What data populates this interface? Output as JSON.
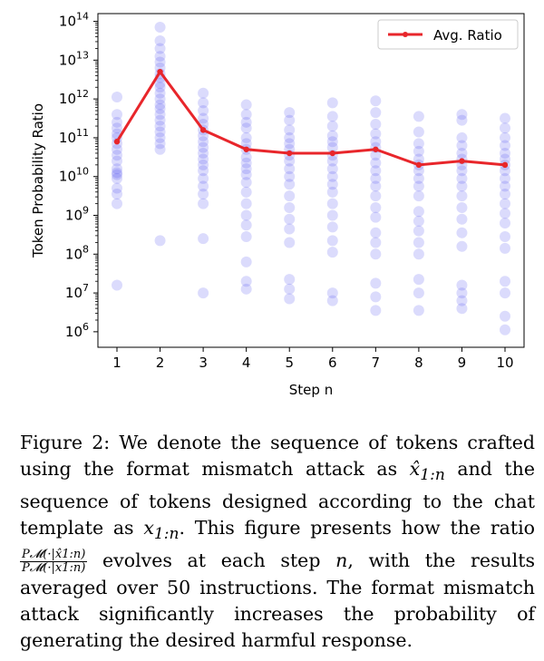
{
  "chart_data": {
    "type": "scatter",
    "ylabel": "Token Probability Ratio",
    "xlabel": "Step n",
    "yscale": "log",
    "ylim_exponent": [
      5.6,
      14.2
    ],
    "yticks": [
      {
        "exp": 6,
        "label": "10^6"
      },
      {
        "exp": 7,
        "label": "10^7"
      },
      {
        "exp": 8,
        "label": "10^8"
      },
      {
        "exp": 9,
        "label": "10^9"
      },
      {
        "exp": 10,
        "label": "10^10"
      },
      {
        "exp": 11,
        "label": "10^11"
      },
      {
        "exp": 12,
        "label": "10^12"
      },
      {
        "exp": 13,
        "label": "10^13"
      },
      {
        "exp": 14,
        "label": "10^14"
      }
    ],
    "categories": [
      "1",
      "2",
      "3",
      "4",
      "5",
      "6",
      "7",
      "8",
      "9",
      "10"
    ],
    "legend": {
      "label": "Avg. Ratio",
      "position": "top-right"
    },
    "colors": {
      "avg_line": "#e8262b",
      "points": "#4a4af0"
    },
    "avg_ratio_exponent": [
      10.9,
      12.7,
      11.2,
      10.7,
      10.6,
      10.6,
      10.7,
      10.3,
      10.4,
      10.3
    ],
    "points_exponent": [
      [
        12.05,
        11.6,
        11.4,
        11.25,
        11.1,
        11.0,
        10.85,
        10.7,
        10.55,
        10.4,
        10.2,
        10.1,
        10.05,
        9.95,
        9.7,
        9.55,
        9.3,
        7.2
      ],
      [
        13.85,
        13.5,
        13.3,
        13.1,
        12.95,
        12.8,
        12.65,
        12.55,
        12.4,
        12.3,
        12.15,
        12.0,
        11.85,
        11.75,
        11.6,
        11.45,
        11.3,
        11.15,
        11.0,
        10.85,
        10.7,
        8.35
      ],
      [
        12.15,
        11.9,
        11.7,
        11.5,
        11.35,
        11.2,
        11.05,
        10.9,
        10.75,
        10.6,
        10.45,
        10.3,
        10.15,
        9.95,
        9.75,
        9.55,
        9.3,
        8.4,
        7.0
      ],
      [
        11.85,
        11.6,
        11.4,
        11.25,
        11.0,
        10.85,
        10.7,
        10.5,
        10.35,
        10.2,
        10.05,
        9.85,
        9.6,
        9.3,
        9.0,
        8.75,
        8.45,
        7.8,
        7.3,
        7.1
      ],
      [
        11.65,
        11.45,
        11.2,
        11.0,
        10.85,
        10.7,
        10.55,
        10.4,
        10.2,
        10.0,
        9.8,
        9.5,
        9.2,
        8.9,
        8.65,
        8.3,
        7.35,
        7.1,
        6.85
      ],
      [
        11.9,
        11.55,
        11.3,
        11.05,
        10.9,
        10.75,
        10.55,
        10.4,
        10.2,
        10.0,
        9.8,
        9.6,
        9.3,
        9.0,
        8.7,
        8.35,
        8.05,
        7.0,
        6.8
      ],
      [
        11.95,
        11.65,
        11.35,
        11.1,
        10.9,
        10.75,
        10.55,
        10.35,
        10.15,
        9.95,
        9.75,
        9.5,
        9.2,
        8.95,
        8.55,
        8.3,
        8.0,
        7.25,
        6.9,
        6.55
      ],
      [
        11.55,
        11.15,
        10.85,
        10.65,
        10.45,
        10.3,
        10.15,
        9.95,
        9.75,
        9.5,
        9.1,
        8.85,
        8.6,
        8.3,
        8.0,
        7.35,
        7.0,
        6.55
      ],
      [
        11.6,
        11.45,
        11.0,
        10.8,
        10.6,
        10.45,
        10.3,
        10.15,
        9.95,
        9.75,
        9.5,
        9.2,
        8.9,
        8.55,
        8.2,
        7.2,
        7.0,
        6.8,
        6.6
      ],
      [
        11.5,
        11.25,
        11.0,
        10.8,
        10.6,
        10.45,
        10.3,
        10.15,
        9.95,
        9.75,
        9.55,
        9.3,
        9.05,
        8.8,
        8.45,
        8.15,
        7.3,
        7.0,
        6.4,
        6.05
      ]
    ]
  },
  "caption": {
    "fig_label": "Figure 2:",
    "part1": " We denote the sequence of tokens crafted using the format mismatch attack as ",
    "math_hat": "x̂",
    "sub_1n": "1:n",
    "part2": " and the sequence of tokens designed according to the chat template as ",
    "math_x": "x",
    "part3": ". This figure presents how the ratio ",
    "frac_num": "P𝓜(·|x̂1:n)",
    "frac_den": "P𝓜(·|x1:n)",
    "part4": " evolves at each step ",
    "math_n": "n",
    "part5": ", with the results averaged over 50 instructions. The format mismatch attack significantly increases the probability of generating the desired harmful response."
  }
}
